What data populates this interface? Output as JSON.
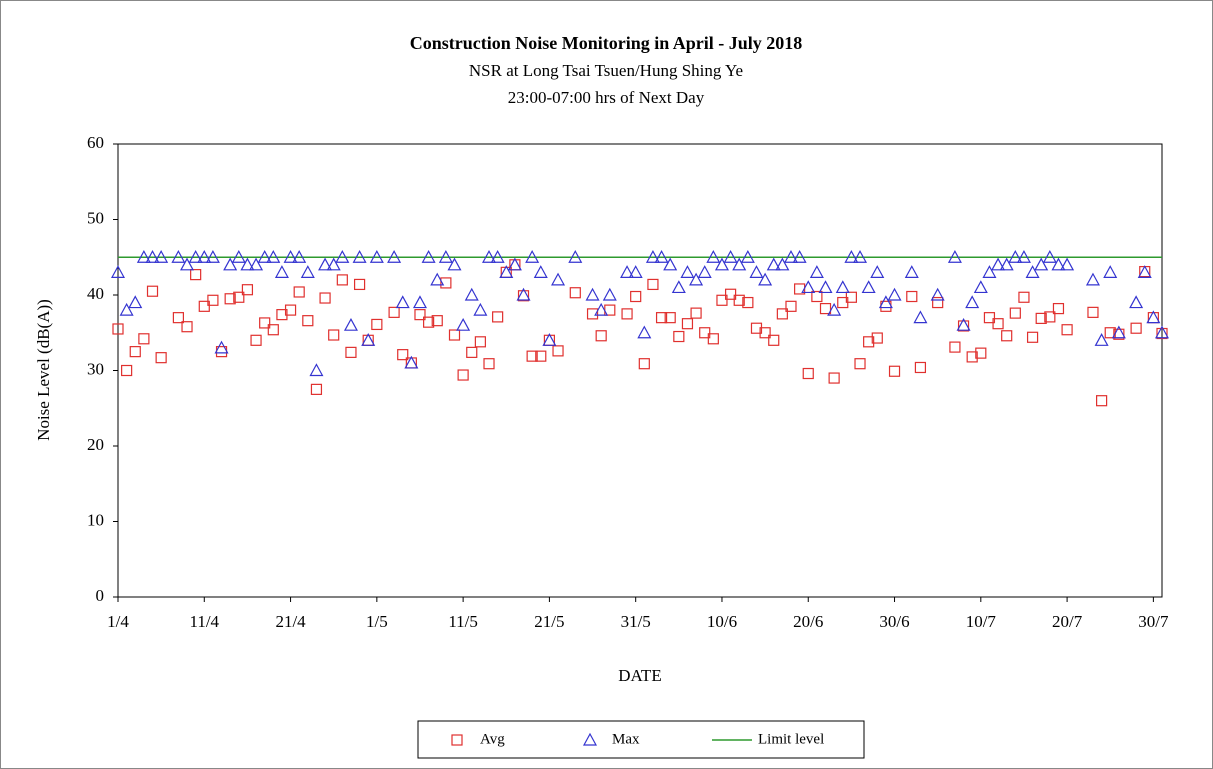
{
  "chart_data": {
    "type": "scatter",
    "title": "Construction  Noise Monitoring  in April - July 2018",
    "subtitle": [
      "NSR at Long  Tsai Tsuen/Hung  Shing Ye",
      "23:00-07:00 hrs of Next Day"
    ],
    "y_label": "Noise Level  (dB(A))",
    "x_label": "DATE",
    "categories": [
      "1/4",
      null,
      null,
      null,
      null,
      null,
      null,
      null,
      null,
      null,
      "11/4",
      null,
      null,
      null,
      null,
      null,
      null,
      null,
      null,
      null,
      "21/4",
      null,
      null,
      null,
      null,
      null,
      null,
      null,
      null,
      null,
      "1/5",
      null,
      null,
      null,
      null,
      null,
      null,
      null,
      null,
      null,
      "11/5",
      null,
      null,
      null,
      null,
      null,
      null,
      null,
      null,
      null,
      "21/5",
      null,
      null,
      null,
      null,
      null,
      null,
      null,
      null,
      null,
      "31/5",
      null,
      null,
      null,
      null,
      null,
      null,
      null,
      null,
      null,
      "10/6",
      null,
      null,
      null,
      null,
      null,
      null,
      null,
      null,
      null,
      "20/6",
      null,
      null,
      null,
      null,
      null,
      null,
      null,
      null,
      null,
      "30/6",
      null,
      null,
      null,
      null,
      null,
      null,
      null,
      null,
      null,
      "10/7",
      null,
      null,
      null,
      null,
      null,
      null,
      null,
      null,
      null,
      "20/7",
      null,
      null,
      null,
      null,
      null,
      null,
      null,
      null,
      null,
      "30/7",
      null
    ],
    "series": [
      {
        "name": "Avg",
        "marker": "square",
        "color": "#e0302e",
        "values": [
          35.5,
          30,
          32.5,
          34.2,
          40.5,
          31.7,
          null,
          37,
          35.8,
          42.7,
          38.5,
          39.3,
          32.5,
          39.5,
          39.7,
          40.7,
          34,
          36.3,
          35.4,
          37.4,
          38,
          40.4,
          36.6,
          27.5,
          39.6,
          34.7,
          42,
          32.4,
          41.4,
          34,
          36.1,
          null,
          37.7,
          32.1,
          31,
          37.4,
          36.4,
          36.6,
          41.6,
          34.7,
          29.4,
          32.4,
          33.8,
          30.9,
          37.1,
          43,
          44,
          39.9,
          31.9,
          31.9,
          34,
          32.6,
          null,
          40.3,
          null,
          37.5,
          34.6,
          38,
          null,
          37.5,
          39.8,
          30.9,
          41.4,
          37,
          37,
          34.5,
          36.2,
          37.6,
          35,
          34.2,
          39.3,
          40.1,
          39.3,
          39,
          35.6,
          35,
          34,
          37.5,
          38.5,
          40.8,
          29.6,
          39.8,
          38.2,
          29,
          39,
          39.7,
          30.9,
          33.8,
          34.3,
          38.5,
          29.9,
          null,
          39.8,
          30.4,
          null,
          39,
          null,
          33.1,
          35.9,
          31.8,
          32.3,
          37,
          36.2,
          34.6,
          37.6,
          39.7,
          34.4,
          36.9,
          37.1,
          38.2,
          35.4,
          null,
          null,
          37.7,
          26,
          35,
          34.8,
          null,
          35.6,
          43.1,
          37,
          34.9
        ]
      },
      {
        "name": "Max",
        "marker": "triangle",
        "color": "#3434d0",
        "values": [
          43,
          38,
          39,
          45,
          45,
          45,
          null,
          45,
          44,
          45,
          45,
          45,
          33,
          44,
          45,
          44,
          44,
          45,
          45,
          43,
          45,
          45,
          43,
          30,
          44,
          44,
          45,
          36,
          45,
          34,
          45,
          null,
          45,
          39,
          31,
          39,
          45,
          42,
          45,
          44,
          36,
          40,
          38,
          45,
          45,
          43,
          44,
          40,
          45,
          43,
          34,
          42,
          null,
          45,
          null,
          40,
          38,
          40,
          null,
          43,
          43,
          35,
          45,
          45,
          44,
          41,
          43,
          42,
          43,
          45,
          44,
          45,
          44,
          45,
          43,
          42,
          44,
          44,
          45,
          45,
          41,
          43,
          41,
          38,
          41,
          45,
          45,
          41,
          43,
          39,
          40,
          null,
          43,
          37,
          null,
          40,
          null,
          45,
          36,
          39,
          41,
          43,
          44,
          44,
          45,
          45,
          43,
          44,
          45,
          44,
          44,
          null,
          null,
          42,
          34,
          43,
          35,
          null,
          39,
          43,
          37,
          35
        ]
      }
    ],
    "limit": {
      "name": "Limit level",
      "color": "#2e9a2e",
      "value": 45
    },
    "ylim": [
      0,
      60
    ],
    "yticks": [
      0,
      10,
      20,
      30,
      40,
      50,
      60
    ],
    "grid": false
  }
}
